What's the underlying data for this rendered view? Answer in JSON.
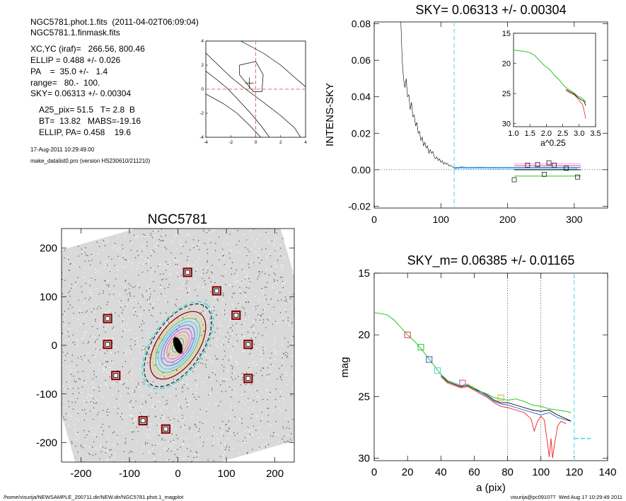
{
  "header": {
    "lines1": [
      "NGC5781.phot.1.fits  (2011-04-02T06:09:04)",
      "NGC5781.1.finmask.fits"
    ],
    "lines2": [
      "XC,YC (iraf)=   266.56, 800.46",
      "ELLIP = 0.488 +/- 0.026",
      "PA    =  35.0 +/-   1.4",
      "range=   80.-  100.",
      "SKY= 0.06313 +/- 0.00304"
    ],
    "lines3": [
      "A25_pix= 51.5   T= 2.8  B",
      "BT=  13.82   MABS=-19.16",
      "ELLIP, PA= 0.458    19.6"
    ],
    "date_line": "17-Aug-2011 10:29:49.00",
    "prog_line": "make_datalist0.pro (version HS230610/211210)"
  },
  "footer": {
    "left": "/home/visurija/NEWSAMPLE_200711.dir/NEW.dir/NGC5781.phot.1_magplot",
    "right": "visurija@pc091077  Wed Aug 17 10:29:49 2011"
  },
  "chart_data": [
    {
      "id": "contour",
      "type": "line",
      "xlim": [
        -4,
        4
      ],
      "ylim": [
        -4,
        4
      ],
      "xticks": [
        "-4",
        "-2",
        "0",
        "2",
        "4"
      ],
      "yticks": [
        "-4",
        "-2",
        "0",
        "2",
        "4"
      ],
      "crosshair_color": "#e07070",
      "curves": [
        {
          "name": "outer-upper",
          "points": [
            [
              -1.2,
              4
            ],
            [
              0.6,
              3
            ],
            [
              2.0,
              2
            ],
            [
              3.1,
              1
            ],
            [
              4,
              0.2
            ]
          ]
        },
        {
          "name": "outer-lower",
          "points": [
            [
              -4,
              -0.4
            ],
            [
              -2.6,
              -1.2
            ],
            [
              -1.5,
              -2
            ],
            [
              -0.5,
              -3
            ],
            [
              0.4,
              -4
            ]
          ]
        },
        {
          "name": "middle-upper",
          "points": [
            [
              -4,
              3
            ],
            [
              -3,
              2
            ],
            [
              -2,
              1
            ],
            [
              -0.8,
              0
            ],
            [
              0.5,
              -1
            ],
            [
              2,
              -2.2
            ],
            [
              3.1,
              -3.2
            ],
            [
              3.6,
              -4
            ]
          ]
        },
        {
          "name": "middle-lower",
          "points": [
            [
              -4,
              1.5
            ],
            [
              -3,
              0.7
            ],
            [
              -2.2,
              0
            ],
            [
              -1.3,
              -1
            ],
            [
              -0.4,
              -2
            ],
            [
              0.4,
              -3
            ],
            [
              1.1,
              -4
            ]
          ]
        },
        {
          "name": "inner-loop",
          "points": [
            [
              -1.3,
              2
            ],
            [
              0,
              2.3
            ],
            [
              0.6,
              1.2
            ],
            [
              0.5,
              -0.2
            ],
            [
              -0.2,
              -0.2
            ],
            [
              -1.3,
              1.2
            ],
            [
              -1.3,
              2
            ]
          ]
        }
      ],
      "marker": [
        -0.5,
        0.5
      ]
    },
    {
      "id": "sky-profile",
      "type": "line",
      "title": "SKY= 0.06313 +/- 0.00304",
      "ylabel": "INTENS-SKY",
      "xlim": [
        0,
        350
      ],
      "ylim": [
        -0.021,
        0.081
      ],
      "xticks": [
        0,
        100,
        200,
        300
      ],
      "yticks": [
        -0.02,
        0.0,
        0.02,
        0.04,
        0.06,
        0.08
      ],
      "ytick_labels": [
        "-0.02",
        "0.00",
        "0.02",
        "0.04",
        "0.06",
        "0.08"
      ],
      "zero_line": 0.0,
      "sky_radius": 120,
      "profile": [
        [
          40,
          0.081
        ],
        [
          42,
          0.06
        ],
        [
          44,
          0.05
        ],
        [
          46,
          0.045
        ],
        [
          48,
          0.05
        ],
        [
          50,
          0.04
        ],
        [
          52,
          0.041
        ],
        [
          54,
          0.033
        ],
        [
          56,
          0.037
        ],
        [
          58,
          0.029
        ],
        [
          60,
          0.03
        ],
        [
          62,
          0.024
        ],
        [
          64,
          0.026
        ],
        [
          66,
          0.02
        ],
        [
          68,
          0.021
        ],
        [
          70,
          0.016
        ],
        [
          72,
          0.018
        ],
        [
          74,
          0.013
        ],
        [
          76,
          0.015
        ],
        [
          78,
          0.012
        ],
        [
          80,
          0.013
        ],
        [
          82,
          0.009
        ],
        [
          84,
          0.011
        ],
        [
          86,
          0.009
        ],
        [
          88,
          0.01
        ],
        [
          90,
          0.007
        ],
        [
          92,
          0.006
        ],
        [
          94,
          0.007
        ],
        [
          96,
          0.005
        ],
        [
          98,
          0.006
        ],
        [
          100,
          0.004
        ],
        [
          102,
          0.005
        ],
        [
          104,
          0.003
        ],
        [
          106,
          0.004
        ],
        [
          108,
          0.003
        ],
        [
          110,
          0.0035
        ],
        [
          112,
          0.002
        ],
        [
          114,
          0.0025
        ],
        [
          116,
          0.002
        ],
        [
          118,
          0.0015
        ],
        [
          120,
          0.001
        ]
      ],
      "sky_curve": [
        [
          120,
          0.0005
        ],
        [
          130,
          0.0015
        ],
        [
          140,
          0.0012
        ],
        [
          160,
          0.0013
        ],
        [
          180,
          0.001
        ],
        [
          200,
          0.0012
        ],
        [
          230,
          0.0011
        ],
        [
          260,
          0.0013
        ],
        [
          290,
          0.0012
        ],
        [
          305,
          0.001
        ]
      ],
      "sky_points": [
        [
          210,
          -0.0055
        ],
        [
          230,
          0.0025
        ],
        [
          245,
          0.0028
        ],
        [
          255,
          -0.0025
        ],
        [
          262,
          0.0038
        ],
        [
          270,
          0.0025
        ],
        [
          288,
          0.0008
        ],
        [
          305,
          -0.004
        ]
      ],
      "band_lines": [
        {
          "color": "#1f77ff",
          "y1": 0.0012,
          "y2": 0.0012,
          "x1": 120,
          "x2": 310
        },
        {
          "color": "#ff5555",
          "y1": 0.0022,
          "y2": 0.0022,
          "x1": 210,
          "x2": 310
        },
        {
          "color": "#ff9aff",
          "y1": 0.0032,
          "y2": 0.0032,
          "x1": 210,
          "x2": 310
        },
        {
          "color": "#000000",
          "y1": 0.0,
          "y2": 0.0,
          "x1": 210,
          "x2": 310
        },
        {
          "color": "#22cc22",
          "y1": -0.0035,
          "y2": -0.0035,
          "x1": 210,
          "x2": 310
        }
      ]
    },
    {
      "id": "sky-inset",
      "type": "line",
      "xlabel": "a^0.25",
      "xlim": [
        1.0,
        3.5
      ],
      "ylim": [
        15.0,
        30.5
      ],
      "xticks": [
        "1.0",
        "1.5",
        "2.0",
        "2.5",
        "3.0",
        "3.5"
      ],
      "yticks": [
        "15",
        "20",
        "25",
        "30"
      ],
      "green": [
        [
          1.0,
          17.8
        ],
        [
          1.3,
          18.0
        ],
        [
          1.5,
          18.2
        ],
        [
          1.65,
          18.7
        ],
        [
          1.8,
          19.6
        ],
        [
          1.95,
          20.4
        ],
        [
          2.1,
          21.0
        ],
        [
          2.25,
          22.0
        ],
        [
          2.4,
          22.8
        ],
        [
          2.55,
          23.8
        ],
        [
          2.7,
          24.4
        ],
        [
          2.85,
          24.9
        ],
        [
          2.95,
          25.4
        ],
        [
          3.1,
          25.8
        ],
        [
          3.2,
          26.4
        ]
      ],
      "black": [
        [
          2.6,
          24.3
        ],
        [
          2.75,
          24.8
        ],
        [
          2.85,
          25.1
        ],
        [
          2.95,
          25.6
        ],
        [
          3.05,
          26.0
        ],
        [
          3.15,
          26.3
        ],
        [
          3.2,
          27.0
        ]
      ],
      "red": [
        [
          2.6,
          24.5
        ],
        [
          2.75,
          25.0
        ],
        [
          2.85,
          25.2
        ],
        [
          2.95,
          25.8
        ],
        [
          3.05,
          26.5
        ],
        [
          3.1,
          26.8
        ],
        [
          3.15,
          27.9
        ],
        [
          3.2,
          29.2
        ]
      ]
    },
    {
      "id": "image",
      "type": "scatter",
      "title": "NGC5781",
      "xlim": [
        -240,
        240
      ],
      "ylim": [
        -240,
        240
      ],
      "xticks": [
        -200,
        -100,
        0,
        100,
        200
      ],
      "yticks": [
        -200,
        -100,
        0,
        100,
        200
      ],
      "star_boxes": [
        [
          20,
          150
        ],
        [
          80,
          112
        ],
        [
          120,
          62
        ],
        [
          145,
          2
        ],
        [
          145,
          -68
        ],
        [
          -25,
          -172
        ],
        [
          -72,
          -155
        ],
        [
          -128,
          -62
        ],
        [
          -145,
          2
        ],
        [
          -145,
          55
        ]
      ],
      "ellipse_black": {
        "cx": 0,
        "cy": 0,
        "a": 80,
        "b": 42,
        "pa": 35
      },
      "ellipse_cyan": {
        "cx": 0,
        "cy": 0,
        "a": 103,
        "b": 53,
        "pa": 35
      },
      "ellipse_black_dash": {
        "cx": 0,
        "cy": 0,
        "a": 98,
        "b": 50,
        "pa": 35
      },
      "isophotes": [
        "#ff4fa0",
        "#ffcc33",
        "#33cc66",
        "#33ccff",
        "#3377ff",
        "#aa55ff",
        "#ff6688",
        "#ffaa33",
        "#55aa55"
      ]
    },
    {
      "id": "mag-profile",
      "type": "line",
      "title": "SKY_m=  0.06385 +/- 0.01165",
      "xlabel": "a (pix)",
      "ylabel": "mag",
      "xlim": [
        0,
        140
      ],
      "ylim": [
        15.0,
        30.2
      ],
      "xticks": [
        0,
        20,
        40,
        60,
        80,
        100,
        120,
        140
      ],
      "yticks": [
        "15",
        "20",
        "25",
        "30"
      ],
      "vlines_dotted": [
        80,
        100
      ],
      "vline_cyan": 120,
      "cyan_level": {
        "x1": 120,
        "x2": 130,
        "y": 28.4
      },
      "green": [
        [
          0,
          18.2
        ],
        [
          5,
          18.3
        ],
        [
          8,
          18.4
        ],
        [
          12,
          18.8
        ],
        [
          16,
          19.4
        ],
        [
          20,
          20.0
        ],
        [
          24,
          20.5
        ],
        [
          28,
          21.1
        ],
        [
          32,
          21.8
        ],
        [
          36,
          22.5
        ],
        [
          40,
          23.2
        ],
        [
          44,
          23.7
        ],
        [
          48,
          23.9
        ],
        [
          52,
          24.1
        ],
        [
          56,
          24.0
        ],
        [
          60,
          24.3
        ],
        [
          64,
          24.6
        ],
        [
          68,
          24.8
        ],
        [
          72,
          25.1
        ],
        [
          76,
          25.2
        ],
        [
          80,
          25.3
        ],
        [
          85,
          25.2
        ],
        [
          90,
          25.4
        ],
        [
          95,
          25.7
        ],
        [
          100,
          25.8
        ],
        [
          105,
          26.0
        ],
        [
          110,
          26.1
        ],
        [
          115,
          26.2
        ],
        [
          118,
          26.3
        ]
      ],
      "black": [
        [
          40,
          23.2
        ],
        [
          44,
          23.8
        ],
        [
          48,
          24.0
        ],
        [
          52,
          24.2
        ],
        [
          56,
          24.1
        ],
        [
          60,
          24.4
        ],
        [
          64,
          24.6
        ],
        [
          68,
          24.9
        ],
        [
          72,
          25.3
        ],
        [
          76,
          25.5
        ],
        [
          80,
          25.5
        ],
        [
          85,
          25.7
        ],
        [
          90,
          25.9
        ],
        [
          95,
          26.1
        ],
        [
          100,
          26.2
        ],
        [
          105,
          26.1
        ],
        [
          110,
          26.5
        ],
        [
          115,
          26.8
        ],
        [
          118,
          27.0
        ]
      ],
      "blue": [
        [
          40,
          23.3
        ],
        [
          44,
          23.8
        ],
        [
          48,
          24.0
        ],
        [
          52,
          24.2
        ],
        [
          56,
          24.1
        ],
        [
          60,
          24.4
        ],
        [
          64,
          24.7
        ],
        [
          68,
          25.0
        ],
        [
          72,
          25.4
        ],
        [
          76,
          25.6
        ],
        [
          80,
          25.7
        ],
        [
          85,
          25.9
        ],
        [
          90,
          26.1
        ],
        [
          95,
          26.3
        ],
        [
          100,
          26.5
        ],
        [
          105,
          26.3
        ],
        [
          110,
          26.7
        ],
        [
          115,
          26.9
        ],
        [
          118,
          27.0
        ]
      ],
      "red": [
        [
          40,
          23.4
        ],
        [
          44,
          23.9
        ],
        [
          48,
          24.1
        ],
        [
          52,
          24.3
        ],
        [
          56,
          24.2
        ],
        [
          60,
          24.5
        ],
        [
          64,
          24.8
        ],
        [
          68,
          25.1
        ],
        [
          72,
          25.5
        ],
        [
          76,
          25.8
        ],
        [
          80,
          25.9
        ],
        [
          85,
          26.1
        ],
        [
          90,
          26.3
        ],
        [
          94,
          26.8
        ],
        [
          96,
          27.8
        ],
        [
          98,
          27.0
        ],
        [
          100,
          26.6
        ],
        [
          102,
          26.9
        ],
        [
          104,
          28.8
        ],
        [
          105,
          29.9
        ],
        [
          106,
          28.4
        ],
        [
          107,
          30.0
        ],
        [
          108,
          29.0
        ],
        [
          110,
          27.4
        ],
        [
          112,
          27.0
        ],
        [
          115,
          27.2
        ]
      ],
      "boxes": [
        {
          "x": 20,
          "y": 20.0,
          "color": "#e03a3a"
        },
        {
          "x": 28,
          "y": 21.0,
          "color": "#33bb33"
        },
        {
          "x": 33,
          "y": 22.0,
          "color": "#3355cc"
        },
        {
          "x": 38,
          "y": 22.9,
          "color": "#55ccdd"
        },
        {
          "x": 53,
          "y": 23.9,
          "color": "#cc44cc"
        },
        {
          "x": 76,
          "y": 25.1,
          "color": "#d4b430"
        }
      ]
    }
  ]
}
